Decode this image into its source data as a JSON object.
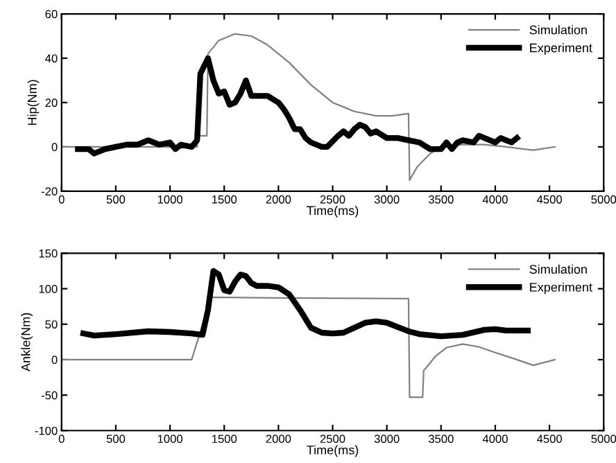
{
  "chart_data": [
    {
      "type": "line",
      "xlabel": "Time(ms)",
      "ylabel": "Hip(Nm)",
      "xlim": [
        0,
        5000
      ],
      "ylim": [
        -20,
        60
      ],
      "xticks": [
        0,
        500,
        1000,
        1500,
        2000,
        2500,
        3000,
        3500,
        4000,
        4500,
        5000
      ],
      "yticks": [
        -20,
        0,
        20,
        40,
        60
      ],
      "grid": false,
      "legend": "top right",
      "series": [
        {
          "name": "Simulation",
          "color": "#808080",
          "line_style": "solid",
          "x": [
            0,
            1250,
            1255,
            1340,
            1350,
            1450,
            1600,
            1750,
            1900,
            2100,
            2300,
            2500,
            2700,
            2900,
            3050,
            3200,
            3210,
            3280,
            3400,
            3500,
            3700,
            3900,
            4100,
            4350,
            4550
          ],
          "values": [
            0,
            0,
            5,
            5,
            42,
            48,
            51,
            50,
            46,
            38,
            28,
            20,
            16,
            14,
            14,
            15,
            -15,
            -9,
            -3,
            0,
            1,
            1,
            0,
            -1.5,
            0
          ]
        },
        {
          "name": "Experiment",
          "color": "#000000",
          "line_style": "solid",
          "x": [
            150,
            250,
            300,
            400,
            500,
            600,
            700,
            800,
            900,
            1000,
            1050,
            1100,
            1200,
            1250,
            1280,
            1350,
            1400,
            1450,
            1500,
            1550,
            1600,
            1650,
            1700,
            1750,
            1800,
            1900,
            2000,
            2050,
            2100,
            2150,
            2200,
            2250,
            2300,
            2400,
            2450,
            2550,
            2600,
            2650,
            2700,
            2750,
            2800,
            2850,
            2900,
            3000,
            3100,
            3200,
            3300,
            3400,
            3500,
            3550,
            3600,
            3650,
            3700,
            3800,
            3850,
            3900,
            4000,
            4050,
            4100,
            4150,
            4200
          ],
          "values": [
            -1,
            -1,
            -3,
            -1,
            0,
            1,
            1,
            3,
            1,
            2,
            -1,
            1,
            0,
            3,
            33,
            40,
            30,
            24,
            25,
            19,
            20,
            24,
            30,
            23,
            23,
            23,
            20,
            17,
            13,
            8,
            8,
            4,
            2,
            0,
            0,
            5,
            7,
            5,
            8,
            10,
            9,
            6,
            7,
            4,
            4,
            3,
            2,
            -1,
            -1,
            2,
            -1,
            2,
            3,
            2,
            5,
            4,
            2,
            4,
            3,
            2,
            4
          ]
        }
      ]
    },
    {
      "type": "line",
      "xlabel": "Time(ms)",
      "ylabel": "Ankle(Nm)",
      "xlim": [
        0,
        5000
      ],
      "ylim": [
        -100,
        150
      ],
      "xticks": [
        0,
        500,
        1000,
        1500,
        2000,
        2500,
        3000,
        3500,
        4000,
        4500,
        5000
      ],
      "yticks": [
        -100,
        -50,
        0,
        50,
        100,
        150
      ],
      "grid": false,
      "legend": "top right",
      "series": [
        {
          "name": "Simulation",
          "color": "#808080",
          "line_style": "solid",
          "x": [
            0,
            1200,
            1300,
            1380,
            2000,
            3200,
            3210,
            3330,
            3340,
            3360,
            3450,
            3550,
            3700,
            3850,
            4000,
            4200,
            4350,
            4550
          ],
          "values": [
            0,
            0,
            50,
            88,
            87,
            86,
            -53,
            -53,
            -15,
            -12,
            5,
            17,
            22,
            18,
            10,
            0,
            -8,
            0
          ]
        },
        {
          "name": "Experiment",
          "color": "#000000",
          "line_style": "solid",
          "x": [
            200,
            300,
            500,
            800,
            1000,
            1200,
            1300,
            1350,
            1400,
            1450,
            1500,
            1550,
            1600,
            1650,
            1700,
            1750,
            1800,
            1900,
            2000,
            2100,
            2200,
            2300,
            2400,
            2500,
            2600,
            2700,
            2800,
            2900,
            3000,
            3100,
            3200,
            3300,
            3500,
            3700,
            3900,
            4000,
            4100,
            4300
          ],
          "values": [
            37,
            34,
            36,
            40,
            39,
            37,
            35,
            70,
            125,
            120,
            98,
            96,
            110,
            120,
            118,
            108,
            104,
            104,
            102,
            92,
            70,
            45,
            38,
            37,
            38,
            45,
            52,
            54,
            52,
            46,
            40,
            36,
            33,
            35,
            42,
            43,
            41,
            41
          ]
        }
      ]
    }
  ]
}
